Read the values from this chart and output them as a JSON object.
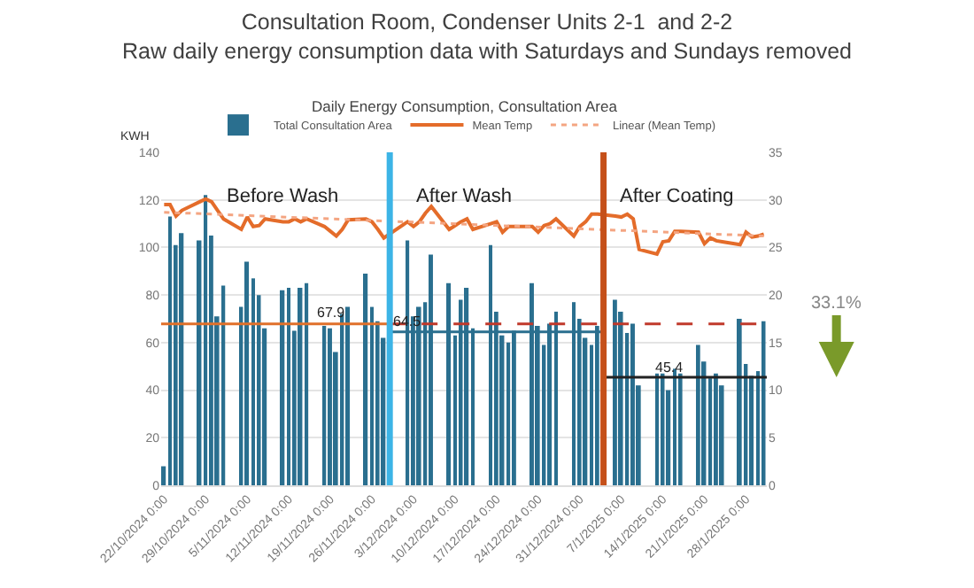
{
  "chart_data": {
    "type": "bar",
    "title": "Consultation Room, Condenser Units 2-1  and 2-2\nRaw daily energy consumption data with Saturdays and Sundays removed",
    "subtitle": "Daily Energy Consumption, Consultation Area",
    "ylabel": "KWH",
    "x": [
      "2024-10-22",
      "2024-10-23",
      "2024-10-24",
      "2024-10-25",
      "2024-10-28",
      "2024-10-29",
      "2024-10-30",
      "2024-10-31",
      "2024-11-01",
      "2024-11-04",
      "2024-11-05",
      "2024-11-06",
      "2024-11-07",
      "2024-11-08",
      "2024-11-11",
      "2024-11-12",
      "2024-11-13",
      "2024-11-14",
      "2024-11-15",
      "2024-11-18",
      "2024-11-19",
      "2024-11-20",
      "2024-11-21",
      "2024-11-22",
      "2024-11-25",
      "2024-11-26",
      "2024-11-27",
      "2024-11-28",
      "2024-12-02",
      "2024-12-03",
      "2024-12-04",
      "2024-12-05",
      "2024-12-06",
      "2024-12-09",
      "2024-12-10",
      "2024-12-11",
      "2024-12-12",
      "2024-12-13",
      "2024-12-16",
      "2024-12-17",
      "2024-12-18",
      "2024-12-19",
      "2024-12-20",
      "2024-12-23",
      "2024-12-24",
      "2024-12-25",
      "2024-12-26",
      "2024-12-27",
      "2024-12-30",
      "2024-12-31",
      "2025-01-01",
      "2025-01-02",
      "2025-01-03",
      "2025-01-06",
      "2025-01-07",
      "2025-01-08",
      "2025-01-09",
      "2025-01-10",
      "2025-01-13",
      "2025-01-14",
      "2025-01-15",
      "2025-01-16",
      "2025-01-17",
      "2025-01-20",
      "2025-01-21",
      "2025-01-22",
      "2025-01-23",
      "2025-01-24",
      "2025-01-27",
      "2025-01-28",
      "2025-01-29",
      "2025-01-30",
      "2025-01-31"
    ],
    "series": [
      {
        "name": "Total Consultation Area",
        "color": "#2a6f8f",
        "values": [
          8,
          113,
          101,
          106,
          103,
          122,
          105,
          71,
          84,
          75,
          94,
          87,
          80,
          66,
          82,
          83,
          65,
          83,
          85,
          67,
          66,
          56,
          72,
          75,
          89,
          75,
          69,
          62,
          103,
          71,
          75,
          77,
          97,
          85,
          63,
          78,
          83,
          66,
          101,
          73,
          63,
          60,
          65,
          85,
          67,
          59,
          68,
          73,
          77,
          70,
          62,
          59,
          67,
          78,
          73,
          64,
          68,
          42,
          47,
          47,
          40,
          49,
          47,
          59,
          52,
          45,
          47,
          42,
          70,
          51,
          46,
          48,
          69
        ]
      },
      {
        "name": "Mean Temp",
        "type": "line",
        "axis": "y2",
        "color": "#e46c2a",
        "values": [
          29.5,
          29.5,
          28.3,
          28.9,
          29.8,
          30.1,
          29.8,
          28.9,
          28.0,
          26.9,
          28.2,
          27.2,
          27.3,
          28.0,
          27.7,
          27.7,
          28.0,
          27.7,
          28.0,
          27.2,
          26.7,
          26.2,
          26.9,
          27.9,
          28.0,
          27.7,
          26.9,
          26.0,
          27.7,
          27.2,
          27.7,
          28.6,
          29.3,
          26.9,
          27.3,
          27.7,
          28.0,
          26.9,
          27.5,
          27.7,
          26.6,
          27.2,
          27.2,
          27.2,
          26.6,
          27.3,
          27.5,
          28.0,
          26.2,
          27.2,
          27.7,
          28.5,
          28.5,
          28.3,
          28.2,
          28.5,
          28.0,
          24.8,
          24.3,
          25.6,
          25.7,
          26.7,
          26.7,
          26.6,
          25.4,
          26.0,
          25.7,
          25.6,
          25.3,
          26.6,
          26.1,
          26.2,
          26.4
        ]
      },
      {
        "name": "Linear (Mean Temp)",
        "type": "line",
        "axis": "y2",
        "line_style": "dotted",
        "color": "#f4a582",
        "x": [
          "2024-10-22",
          "2025-01-31"
        ],
        "values": [
          28.7,
          26.2
        ]
      },
      {
        "type": "line",
        "color": "#e0702a",
        "x": [
          "2024-10-21T12:00",
          "2024-11-29"
        ],
        "values": [
          67.9,
          67.9
        ]
      },
      {
        "type": "line",
        "color": "#2a6f8f",
        "x": [
          "2024-11-29",
          "2025-01-04"
        ],
        "values": [
          64.5,
          64.5
        ]
      },
      {
        "type": "line",
        "line_style": "dashed",
        "color": "#c0392b",
        "x": [
          "2024-11-29",
          "2025-01-31T12:00"
        ],
        "values": [
          67.9,
          67.9
        ]
      },
      {
        "type": "line",
        "color": "#222222",
        "x": [
          "2025-01-04",
          "2025-01-31T12:00"
        ],
        "values": [
          45.4,
          45.4
        ]
      }
    ],
    "xlim": [
      "2024-10-21T12:00",
      "2025-01-31T12:00"
    ],
    "xticks": [
      {
        "value": "2024-10-22",
        "label": "22/10/2024 0:00"
      },
      {
        "value": "2024-10-29",
        "label": "29/10/2024 0:00"
      },
      {
        "value": "2024-11-05",
        "label": "5/11/2024 0:00"
      },
      {
        "value": "2024-11-12",
        "label": "12/11/2024 0:00"
      },
      {
        "value": "2024-11-19",
        "label": "19/11/2024 0:00"
      },
      {
        "value": "2024-11-26",
        "label": "26/11/2024 0:00"
      },
      {
        "value": "2024-12-03",
        "label": "3/12/2024 0:00"
      },
      {
        "value": "2024-12-10",
        "label": "10/12/2024 0:00"
      },
      {
        "value": "2024-12-17",
        "label": "17/12/2024 0:00"
      },
      {
        "value": "2024-12-24",
        "label": "24/12/2024 0:00"
      },
      {
        "value": "2024-12-31",
        "label": "31/12/2024 0:00"
      },
      {
        "value": "2025-01-07",
        "label": "7/1/2025 0:00"
      },
      {
        "value": "2025-01-14",
        "label": "14/1/2025 0:00"
      },
      {
        "value": "2025-01-21",
        "label": "21/1/2025 0:00"
      },
      {
        "value": "2025-01-28",
        "label": "28/1/2025 0:00"
      }
    ],
    "ylim": [
      0,
      140
    ],
    "yticks": [
      0,
      20,
      40,
      60,
      80,
      100,
      120,
      140
    ],
    "y2lim": [
      0,
      35
    ],
    "y2ticks": [
      0,
      5,
      10,
      15,
      20,
      25,
      30,
      35
    ],
    "ref_lines": [
      {
        "axis": "x",
        "value": "2024-11-29",
        "color": "#3cb4e6"
      },
      {
        "axis": "x",
        "value": "2025-01-04",
        "color": "#c5501a"
      }
    ],
    "annotations": [
      "Before Wash",
      "After Wash",
      "After Coating",
      {
        "text": "67.9",
        "x": "2024-11-19",
        "y": 67.9
      },
      {
        "text": "64.5",
        "x": "2024-12-02",
        "y": 64.5
      },
      {
        "text": "45.4",
        "x": "2025-01-15",
        "y": 45.4
      },
      "33.1%"
    ],
    "grid": "y",
    "legend": "top"
  }
}
